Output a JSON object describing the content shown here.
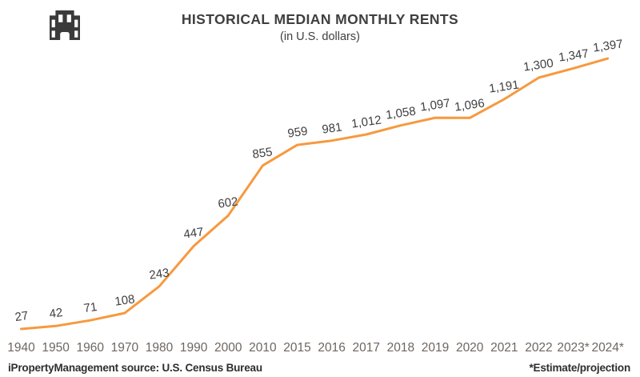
{
  "header": {
    "logo_icon": "building-icon",
    "title": "HISTORICAL MEDIAN MONTHLY RENTS",
    "subtitle": "(in U.S. dollars)"
  },
  "chart_data": {
    "type": "line",
    "title": "HISTORICAL MEDIAN MONTHLY RENTS",
    "subtitle": "(in U.S. dollars)",
    "categories": [
      "1940",
      "1950",
      "1960",
      "1970",
      "1980",
      "1990",
      "2000",
      "2010",
      "2015",
      "2016",
      "2017",
      "2018",
      "2019",
      "2020",
      "2021",
      "2022",
      "2023*",
      "2024*"
    ],
    "values": [
      27,
      42,
      71,
      108,
      243,
      447,
      602,
      855,
      959,
      981,
      1012,
      1058,
      1097,
      1096,
      1191,
      1300,
      1347,
      1397
    ],
    "point_labels": [
      "27",
      "42",
      "71",
      "108",
      "243",
      "447",
      "602",
      "855",
      "959",
      "981",
      "1,012",
      "1,058",
      "1,097",
      "1,096",
      "1,191",
      "1,300",
      "1,347",
      "1,397"
    ],
    "line_color": "#F7993E",
    "data_label_color": "#3F3F3F",
    "axis_label_color": "#6E6660",
    "grid": false,
    "legend": false,
    "y_axis_shown": false,
    "ylim": [
      0,
      1500
    ]
  },
  "footer": {
    "source": "iPropertyManagement source: U.S. Census Bureau",
    "note": "*Estimate/projection"
  }
}
